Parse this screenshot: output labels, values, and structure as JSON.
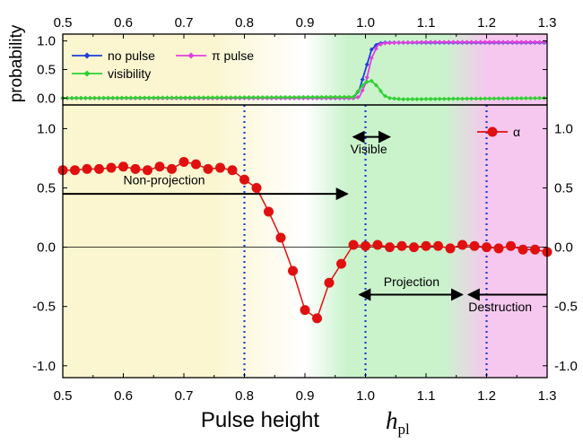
{
  "chart_data": [
    {
      "panel": "top",
      "type": "line",
      "ylabel": "probability",
      "xlim": [
        0.5,
        1.3
      ],
      "ylim": [
        -0.12,
        1.12
      ],
      "x_ticks": [
        "0.5",
        "0.6",
        "0.7",
        "0.8",
        "0.9",
        "1.0",
        "1.1",
        "1.2",
        "1.3"
      ],
      "y_ticks": [
        "0.0",
        "0.5",
        "1.0"
      ],
      "legend": [
        "no pulse",
        "π pulse",
        "visibility"
      ],
      "series": [
        {
          "name": "no pulse",
          "color": "#1f3fd8",
          "x": [
            0.5,
            0.98,
            0.99,
            1.0,
            1.01,
            1.02,
            1.03,
            1.05,
            1.1,
            1.3
          ],
          "y": [
            0.0,
            0.0,
            0.15,
            0.5,
            0.85,
            0.95,
            0.97,
            0.97,
            0.97,
            0.97
          ]
        },
        {
          "name": "π pulse",
          "color": "#e040e0",
          "x": [
            0.5,
            0.98,
            0.99,
            1.0,
            1.01,
            1.02,
            1.03,
            1.05,
            1.1,
            1.3
          ],
          "y": [
            0.0,
            0.0,
            0.02,
            0.25,
            0.7,
            0.92,
            0.96,
            0.97,
            0.98,
            0.98
          ]
        },
        {
          "name": "visibility",
          "color": "#30d030",
          "x": [
            0.5,
            0.98,
            0.99,
            1.0,
            1.01,
            1.02,
            1.03,
            1.04,
            1.06,
            1.3
          ],
          "y": [
            0.0,
            0.02,
            0.15,
            0.28,
            0.3,
            0.2,
            0.05,
            0.0,
            -0.02,
            0.0
          ]
        }
      ]
    },
    {
      "panel": "bottom",
      "type": "line",
      "xlabel": "Pulse height",
      "xlabel_symbol": "h",
      "xlabel_subscript": "pl",
      "xlim": [
        0.5,
        1.3
      ],
      "ylim": [
        -1.1,
        1.2
      ],
      "x_ticks": [
        "0.5",
        "0.6",
        "0.7",
        "0.8",
        "0.9",
        "1.0",
        "1.1",
        "1.2",
        "1.3"
      ],
      "y_ticks": [
        "-1.0",
        "-0.5",
        "0.0",
        "0.5",
        "1.0"
      ],
      "legend": [
        "α"
      ],
      "series": [
        {
          "name": "α",
          "color": "#e01010",
          "x": [
            0.5,
            0.52,
            0.54,
            0.56,
            0.58,
            0.6,
            0.62,
            0.64,
            0.66,
            0.68,
            0.7,
            0.72,
            0.74,
            0.76,
            0.78,
            0.8,
            0.82,
            0.84,
            0.86,
            0.88,
            0.9,
            0.92,
            0.94,
            0.96,
            0.98,
            1.0,
            1.02,
            1.04,
            1.06,
            1.08,
            1.1,
            1.12,
            1.14,
            1.16,
            1.18,
            1.2,
            1.22,
            1.24,
            1.26,
            1.28,
            1.3
          ],
          "y": [
            0.65,
            0.65,
            0.66,
            0.66,
            0.67,
            0.68,
            0.66,
            0.65,
            0.68,
            0.66,
            0.72,
            0.7,
            0.66,
            0.67,
            0.65,
            0.57,
            0.5,
            0.3,
            0.08,
            -0.2,
            -0.53,
            -0.6,
            -0.3,
            -0.14,
            0.02,
            0.01,
            0.02,
            0.0,
            0.01,
            0.0,
            0.01,
            0.01,
            -0.01,
            0.02,
            0.01,
            0.0,
            -0.01,
            0.01,
            -0.02,
            -0.02,
            -0.04
          ]
        }
      ],
      "vlines": [
        0.8,
        1.0,
        1.2
      ],
      "annotations": [
        {
          "text": "Non-projection",
          "x": 0.6,
          "y": 0.53
        },
        {
          "text": "Visible",
          "x": 0.975,
          "y": 0.79
        },
        {
          "text": "Projection",
          "x": 1.03,
          "y": -0.33
        },
        {
          "text": "Destruction",
          "x": 1.17,
          "y": -0.54
        }
      ],
      "arrows": [
        {
          "from": 0.5,
          "to": 0.97,
          "y": 0.45,
          "heads": "end"
        },
        {
          "from": 0.98,
          "to": 1.04,
          "y": 0.93,
          "heads": "both"
        },
        {
          "from": 0.99,
          "to": 1.16,
          "y": -0.4,
          "heads": "both"
        },
        {
          "from": 1.17,
          "to": 1.3,
          "y": -0.4,
          "heads": "start"
        }
      ],
      "background_regions": [
        {
          "from": 0.5,
          "to": 0.75,
          "color": "#fbf6d0"
        },
        {
          "from": 0.97,
          "to": 1.13,
          "color": "#caf3cc"
        },
        {
          "from": 1.2,
          "to": 1.3,
          "color": "#f6c8ef"
        }
      ]
    }
  ]
}
